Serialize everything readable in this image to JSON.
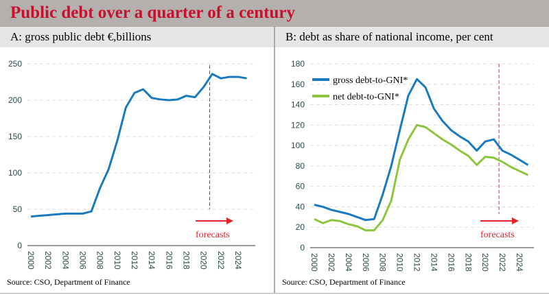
{
  "title": "Public debt over a quarter of a century",
  "source": "Source: CSO, Department of Finance",
  "chart_data": [
    {
      "type": "line",
      "title": "A: gross public debt €,billions",
      "ylim": [
        0,
        250
      ],
      "yticks": [
        0,
        50,
        100,
        150,
        200,
        250
      ],
      "x": [
        2000,
        2001,
        2002,
        2003,
        2004,
        2005,
        2006,
        2007,
        2008,
        2009,
        2010,
        2011,
        2012,
        2013,
        2014,
        2015,
        2016,
        2017,
        2018,
        2019,
        2020,
        2021,
        2022,
        2023,
        2024,
        2025
      ],
      "xticks": [
        2000,
        2002,
        2004,
        2006,
        2008,
        2010,
        2012,
        2014,
        2016,
        2018,
        2020,
        2022,
        2024
      ],
      "series": [
        {
          "values": [
            40,
            41,
            42,
            43,
            44,
            44,
            44,
            47,
            79,
            105,
            144,
            190,
            210,
            215,
            203,
            201,
            200,
            201,
            206,
            204,
            218,
            236,
            230,
            232,
            232,
            230
          ],
          "color": "#1a7abf"
        }
      ],
      "annotation": "forecasts",
      "annotation_color": "#e3242b",
      "grid": true
    },
    {
      "type": "line",
      "title": "B: debt as share of national income, per cent",
      "ylim": [
        0,
        180
      ],
      "yticks": [
        0,
        20,
        40,
        60,
        80,
        100,
        120,
        140,
        160,
        180
      ],
      "x": [
        2000,
        2001,
        2002,
        2003,
        2004,
        2005,
        2006,
        2007,
        2008,
        2009,
        2010,
        2011,
        2012,
        2013,
        2014,
        2015,
        2016,
        2017,
        2018,
        2019,
        2020,
        2021,
        2022,
        2023,
        2024,
        2025
      ],
      "xticks": [
        2000,
        2002,
        2004,
        2006,
        2008,
        2010,
        2012,
        2014,
        2016,
        2018,
        2020,
        2022,
        2024
      ],
      "series": [
        {
          "name": "gross debt-to-GNI*",
          "color": "#1a7abf",
          "values": [
            42,
            40,
            37,
            35,
            33,
            30,
            27,
            28,
            52,
            80,
            115,
            149,
            165,
            157,
            136,
            124,
            115,
            109,
            104,
            95,
            104,
            106,
            95,
            91,
            86,
            81
          ]
        },
        {
          "name": "net debt-to-GNI*",
          "color": "#8cc63f",
          "values": [
            28,
            24,
            27,
            26,
            23,
            21,
            17,
            17,
            27,
            46,
            86,
            106,
            120,
            118,
            112,
            106,
            101,
            95,
            90,
            81,
            89,
            88,
            84,
            79,
            75,
            71
          ]
        }
      ],
      "legend": "top-left",
      "annotation": "forecasts",
      "annotation_color": "#e3242b",
      "grid": true
    }
  ]
}
